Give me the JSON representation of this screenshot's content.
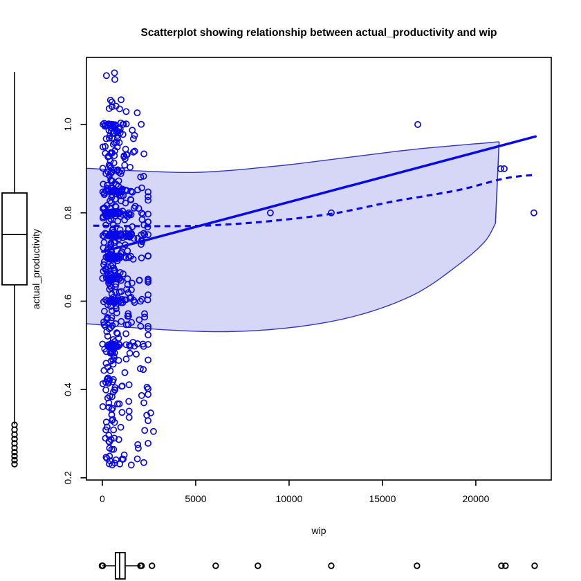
{
  "title": "Scatterplot showing relationship between actual_productivity and wip",
  "x_axis": {
    "label": "wip",
    "ticks": [
      0,
      5000,
      10000,
      15000,
      20000
    ],
    "lim": [
      -850,
      24040
    ]
  },
  "y_axis": {
    "label": "actual_productivity",
    "ticks": [
      0.2,
      0.4,
      0.6,
      0.8,
      1.0
    ],
    "lim": [
      0.195,
      1.152
    ]
  },
  "colors": {
    "series": "#0808E8",
    "band_fill": "rgba(0,0,200,0.16)",
    "band_edge": "#3333CC",
    "axis": "#000000",
    "boxplot": "#000000",
    "background": "#FFFFFF"
  },
  "chart_data": {
    "type": "scatter",
    "title": "Scatterplot showing relationship between actual_productivity and wip",
    "xlabel": "wip",
    "ylabel": "actual_productivity",
    "xlim": [
      -850,
      24040
    ],
    "ylim": [
      0.195,
      1.152
    ],
    "grid": false,
    "legend": false,
    "notable_points": [
      [
        9000,
        0.8
      ],
      [
        12260,
        0.8
      ],
      [
        16890,
        1.0
      ],
      [
        21330,
        0.9
      ],
      [
        21520,
        0.9
      ],
      [
        23110,
        0.8
      ]
    ],
    "cloud": {
      "seed": 42,
      "wip_log_mean": 6.7,
      "wip_log_sd": 0.6,
      "wip_uniform_frac": 0.22,
      "wip_min": 12,
      "wip_max": 2450,
      "rows": [
        {
          "prod": 1.0,
          "n": 16
        },
        {
          "prod": 0.85,
          "n": 18
        },
        {
          "prod": 0.8,
          "n": 42
        },
        {
          "prod": 0.75,
          "n": 38
        },
        {
          "prod": 0.7,
          "n": 34
        },
        {
          "prod": 0.65,
          "n": 28
        },
        {
          "prod": 0.6,
          "n": 22
        },
        {
          "prod": 0.5,
          "n": 28
        }
      ],
      "strata": [
        {
          "range": [
            1.02,
            1.125
          ],
          "n": 12
        },
        {
          "range": [
            0.86,
            1.005
          ],
          "n": 80
        },
        {
          "range": [
            0.805,
            0.86
          ],
          "n": 40
        },
        {
          "range": [
            0.655,
            0.8
          ],
          "n": 88
        },
        {
          "range": [
            0.52,
            0.65
          ],
          "n": 70
        },
        {
          "range": [
            0.4,
            0.52
          ],
          "n": 48
        },
        {
          "range": [
            0.3,
            0.4
          ],
          "n": 34
        },
        {
          "range": [
            0.225,
            0.3
          ],
          "n": 28
        }
      ],
      "stragglers": [
        [
          2740,
          0.305
        ],
        [
          2590,
          0.347
        ],
        [
          1815,
          0.48
        ]
      ]
    },
    "regression_line": {
      "style": "solid",
      "points": [
        [
          0,
          0.712
        ],
        [
          23200,
          0.973
        ]
      ]
    },
    "smooth_line": {
      "style": "dashed",
      "points": [
        [
          -480,
          0.771
        ],
        [
          2000,
          0.77
        ],
        [
          4100,
          0.77
        ],
        [
          6000,
          0.772
        ],
        [
          8900,
          0.781
        ],
        [
          12300,
          0.798
        ],
        [
          15600,
          0.826
        ],
        [
          19000,
          0.851
        ],
        [
          21550,
          0.878
        ],
        [
          23150,
          0.886
        ]
      ]
    },
    "confidence_band": {
      "top": [
        [
          -850,
          0.901
        ],
        [
          1930,
          0.895
        ],
        [
          5260,
          0.892
        ],
        [
          9330,
          0.906
        ],
        [
          13040,
          0.925
        ],
        [
          16740,
          0.944
        ],
        [
          20440,
          0.958
        ],
        [
          21250,
          0.961
        ]
      ],
      "bottom": [
        [
          -850,
          0.549
        ],
        [
          3040,
          0.536
        ],
        [
          6740,
          0.531
        ],
        [
          10440,
          0.542
        ],
        [
          13780,
          0.569
        ],
        [
          16740,
          0.616
        ],
        [
          18960,
          0.679
        ],
        [
          20440,
          0.733
        ],
        [
          21050,
          0.776
        ]
      ]
    },
    "boxplot_y": {
      "orientation": "vertical-left-margin",
      "whisker_low": 0.321,
      "q1": 0.637,
      "median": 0.751,
      "q3": 0.845,
      "whisker_high": 1.119,
      "outliers": [
        0.32,
        0.309,
        0.298,
        0.288,
        0.278,
        0.268,
        0.258,
        0.249,
        0.24,
        0.231
      ]
    },
    "boxplot_x": {
      "orientation": "horizontal-bottom-margin",
      "whisker_low": 0,
      "q1": 700,
      "median": 930,
      "q3": 1220,
      "whisker_high": 2070,
      "end_circles": [
        -20,
        20,
        2040,
        2100
      ],
      "outliers": [
        2660,
        6070,
        8330,
        12260,
        16850,
        21370,
        21590,
        23150
      ]
    }
  }
}
